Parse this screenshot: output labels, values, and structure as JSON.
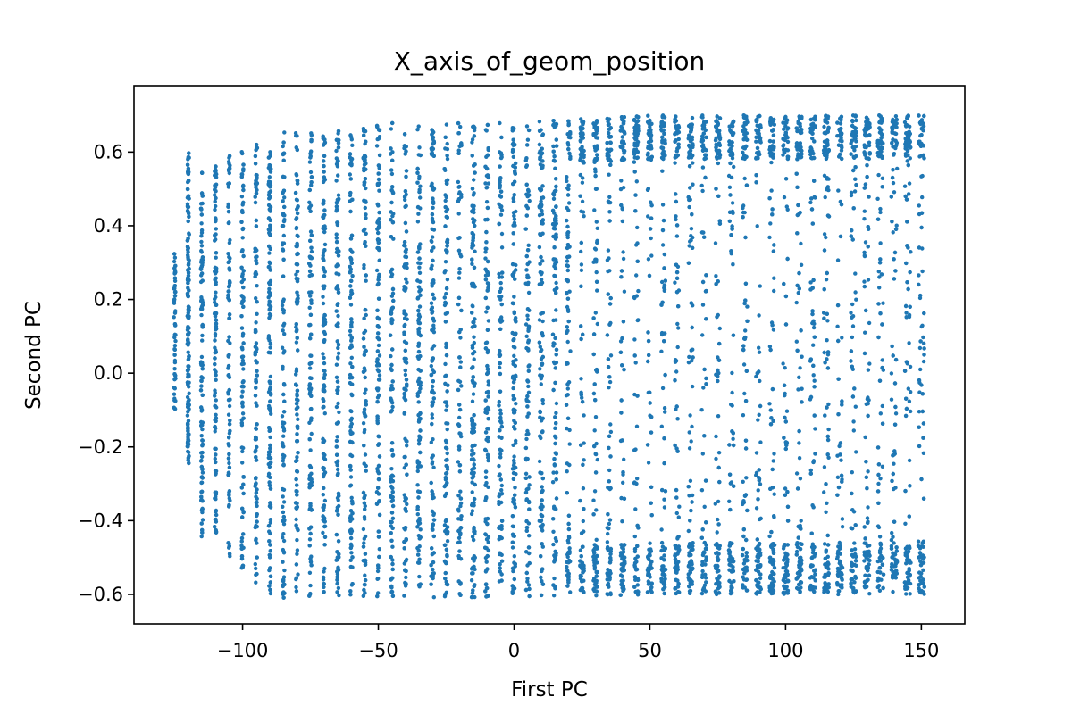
{
  "chart_data": {
    "type": "scatter",
    "title": "X_axis_of_geom_position",
    "xlabel": "First PC",
    "ylabel": "Second PC",
    "xlim": [
      -140,
      166
    ],
    "ylim": [
      -0.68,
      0.78
    ],
    "xticks": [
      -100,
      -50,
      0,
      50,
      100,
      150
    ],
    "xtick_labels": [
      "−100",
      "−50",
      "0",
      "50",
      "100",
      "150"
    ],
    "yticks": [
      -0.6,
      -0.4,
      -0.2,
      0.0,
      0.2,
      0.4,
      0.6
    ],
    "ytick_labels": [
      "−0.6",
      "−0.4",
      "−0.2",
      "0.0",
      "0.2",
      "0.4",
      "0.6"
    ],
    "grid": false,
    "marker_color": "#1f77b4",
    "series": [
      {
        "description_free": true,
        "distribution": {
          "x_min": -125,
          "x_max": 152,
          "column_spacing": 5,
          "left_band_top": [
            [
              -125,
              0.33
            ],
            [
              -120,
              0.6
            ],
            [
              -115,
              0.57
            ],
            [
              -110,
              0.57
            ],
            [
              -105,
              0.6
            ],
            [
              -100,
              0.62
            ],
            [
              -95,
              0.63
            ],
            [
              -90,
              0.64
            ],
            [
              -85,
              0.66
            ],
            [
              -80,
              0.66
            ],
            [
              -70,
              0.67
            ],
            [
              -50,
              0.68
            ],
            [
              0,
              0.68
            ],
            [
              50,
              0.7
            ],
            [
              100,
              0.7
            ],
            [
              152,
              0.7
            ]
          ],
          "left_band_bottom": [
            [
              -125,
              -0.1
            ],
            [
              -120,
              -0.25
            ],
            [
              -115,
              -0.45
            ],
            [
              -110,
              -0.45
            ],
            [
              -105,
              -0.5
            ],
            [
              -100,
              -0.53
            ],
            [
              -95,
              -0.57
            ],
            [
              -90,
              -0.6
            ],
            [
              -85,
              -0.61
            ],
            [
              -80,
              -0.61
            ],
            [
              -70,
              -0.61
            ],
            [
              -50,
              -0.61
            ],
            [
              0,
              -0.61
            ],
            [
              50,
              -0.6
            ],
            [
              100,
              -0.6
            ],
            [
              152,
              -0.6
            ]
          ]
        }
      }
    ]
  }
}
